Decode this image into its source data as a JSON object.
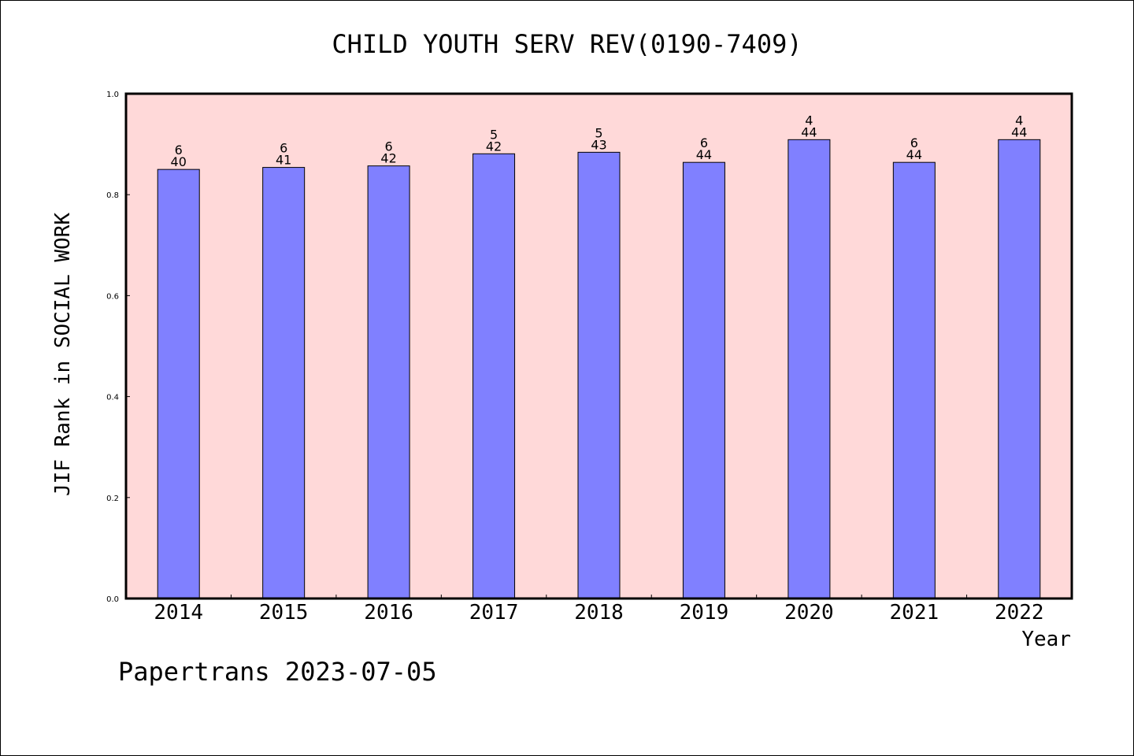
{
  "chart_data": {
    "type": "bar",
    "title": "CHILD YOUTH SERV REV(0190-7409)",
    "xlabel": "Year",
    "ylabel": "JIF Rank in SOCIAL WORK",
    "ylim": [
      0,
      1.0
    ],
    "yticks": [
      "0.0",
      "0.2",
      "0.4",
      "0.6",
      "0.8",
      "1.0"
    ],
    "categories": [
      "2014",
      "2015",
      "2016",
      "2017",
      "2018",
      "2019",
      "2020",
      "2021",
      "2022"
    ],
    "values": [
      0.85,
      0.854,
      0.857,
      0.881,
      0.884,
      0.864,
      0.909,
      0.864,
      0.909
    ],
    "rank_labels": [
      "6",
      "6",
      "6",
      "5",
      "5",
      "6",
      "4",
      "6",
      "4"
    ],
    "total_labels": [
      "40",
      "41",
      "42",
      "42",
      "43",
      "44",
      "44",
      "44",
      "44"
    ],
    "grid": false,
    "legend": "none",
    "colors": {
      "bar": "#8080ff",
      "plot_background": "#ffd9d9",
      "axis": "#000000"
    }
  },
  "footer": {
    "source": "Papertrans 2023-07-05"
  }
}
